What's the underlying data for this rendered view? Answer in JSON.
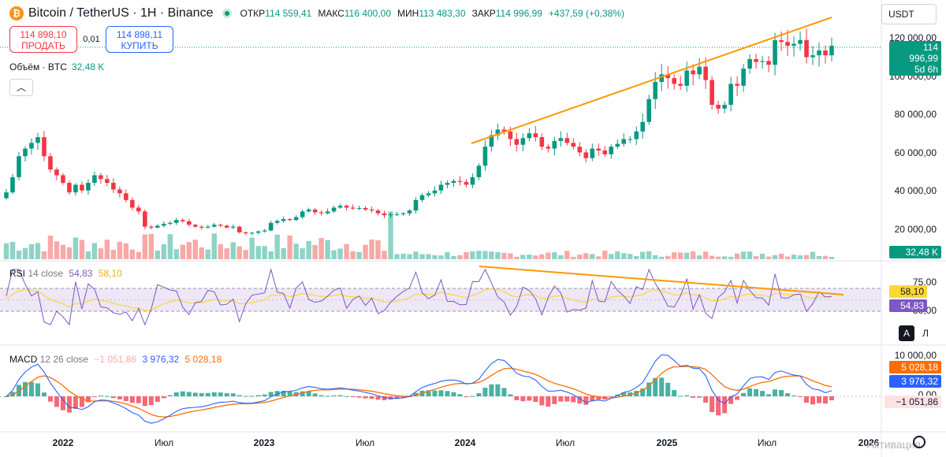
{
  "header": {
    "logo": "₿",
    "title": "Bitcoin / TetherUS · 1H · Binance",
    "ohlc": [
      {
        "label": "ОТКР",
        "value": "114 559,41"
      },
      {
        "label": "МАКС",
        "value": "116 400,00"
      },
      {
        "label": "МИН",
        "value": "113 483,30"
      },
      {
        "label": "ЗАКР",
        "value": "114 996,99"
      }
    ],
    "change": "+437,59 (+0,38%)",
    "currency": "USDT"
  },
  "trade": {
    "sell_price": "114 898,10",
    "sell_label": "ПРОДАТЬ",
    "spread": "0,01",
    "buy_price": "114 898,11",
    "buy_label": "КУПИТЬ"
  },
  "volume": {
    "label": "Объём · BTC",
    "value": "32,48 K",
    "collapse_icon": "chevron-up-icon",
    "collapse_glyph": "︿"
  },
  "price_axis": {
    "ticks": [
      "120 000,00",
      "100 000,00",
      "80 000,00",
      "60 000,00",
      "40 000,00",
      "20 000,00"
    ],
    "last_price": "114 996,99",
    "countdown": "5d 6h",
    "volume_tag": "32,48 K"
  },
  "rsi": {
    "name": "RSI",
    "params": "14 close",
    "value1": "54,83",
    "value2": "58,10",
    "axis_top": "75,00",
    "axis_bottom": "50,00",
    "btn_auto": "A",
    "btn_log": "Л"
  },
  "macd": {
    "name": "MACD",
    "params": "12 26 close",
    "hist": "−1 051,86",
    "macd": "3 976,32",
    "signal": "5 028,18",
    "axis_top": "10 000,00",
    "axis_zero": "0,00"
  },
  "time_axis": [
    {
      "label": "2022",
      "year": true
    },
    {
      "label": "Июл",
      "year": false
    },
    {
      "label": "2023",
      "year": true
    },
    {
      "label": "Июл",
      "year": false
    },
    {
      "label": "2024",
      "year": true
    },
    {
      "label": "Июл",
      "year": false
    },
    {
      "label": "2025",
      "year": true
    },
    {
      "label": "Июл",
      "year": false
    },
    {
      "label": "2026",
      "year": true
    }
  ],
  "watermark": "Активация",
  "colors": {
    "up": "#089981",
    "down": "#f23645",
    "volume_up": "#8fd3c6",
    "volume_down": "#f7a9a8",
    "trendline": "#ff9800",
    "rsi": "#7e57c2",
    "rsi_ma": "#fdd835",
    "macd": "#2962ff",
    "signal": "#ff6d00",
    "band": "#ede7f6"
  },
  "chart_data": {
    "type": "candlestick",
    "title": "Bitcoin / TetherUS · 1H · Binance",
    "ylim": [
      0,
      140000
    ],
    "closes": [
      38000,
      46000,
      57000,
      61000,
      64000,
      67000,
      57000,
      50000,
      47000,
      43000,
      38000,
      42000,
      39000,
      43000,
      47000,
      45000,
      43000,
      39500,
      37500,
      34000,
      30000,
      28000,
      20000,
      19500,
      20500,
      21500,
      22000,
      23500,
      22800,
      21000,
      20000,
      19500,
      20000,
      21000,
      20500,
      19500,
      20000,
      17000,
      16500,
      16800,
      17500,
      18000,
      22000,
      23000,
      24000,
      23500,
      25000,
      28000,
      29000,
      27500,
      27000,
      28000,
      30000,
      31000,
      30000,
      29500,
      29800,
      29000,
      28500,
      27000,
      26000,
      26500,
      26500,
      27000,
      28500,
      34000,
      36500,
      37500,
      39000,
      42000,
      43000,
      44000,
      43500,
      42000,
      46000,
      52000,
      62000,
      68000,
      71000,
      70000,
      66000,
      63000,
      66500,
      69000,
      67000,
      62000,
      61000,
      65000,
      66500,
      64000,
      62000,
      59000,
      56000,
      61000,
      60000,
      58000,
      62000,
      63500,
      66000,
      66000,
      70000,
      75000,
      87000,
      96000,
      100000,
      98000,
      95000,
      94000,
      102000,
      100000,
      104000,
      97000,
      84000,
      82000,
      84000,
      95000,
      94000,
      103000,
      108000,
      106500,
      107000,
      105000,
      118000,
      117000,
      115000,
      116000,
      118000,
      109000,
      110000,
      112500,
      110000,
      115000
    ],
    "volume_note": "relative volume bars",
    "rsi_last": 54.83,
    "rsi_ma_last": 58.1,
    "rsi_levels": [
      70,
      50,
      30
    ],
    "macd_last": 3976.32,
    "signal_last": 5028.18,
    "hist_last": -1051.86
  }
}
